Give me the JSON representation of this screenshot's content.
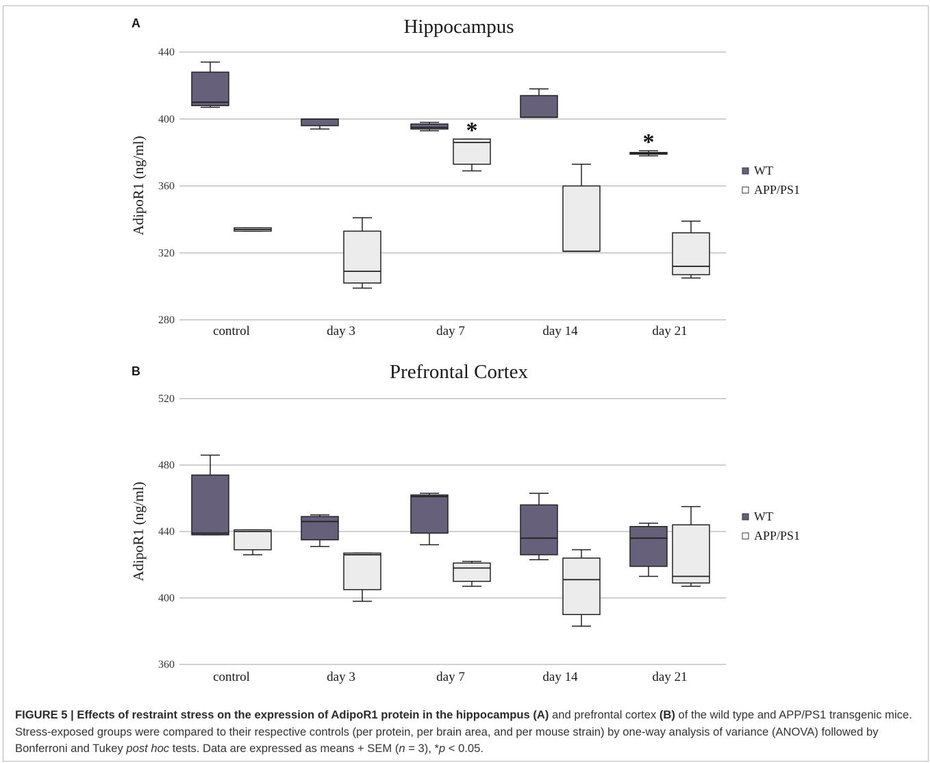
{
  "colors": {
    "wt": "#67607a",
    "app": "#ececec",
    "grid": "#b4b4b4",
    "stroke": "#222222"
  },
  "chart_data": [
    {
      "panel_label": "A",
      "type": "box",
      "title": "Hippocampus",
      "ylabel": "AdipoR1 (ng/ml)",
      "xlabel": "",
      "ylim": [
        280,
        440
      ],
      "yticks": [
        "280",
        "320",
        "360",
        "400",
        "440"
      ],
      "categories": [
        "control",
        "day 3",
        "day 7",
        "day 14",
        "day 21"
      ],
      "grid": true,
      "legend_position": "right",
      "series": [
        {
          "name": "WT",
          "color": "#67607a",
          "boxes": [
            {
              "min": 407,
              "q1": 408,
              "median": 410,
              "q3": 428,
              "max": 434
            },
            {
              "min": 394,
              "q1": 396,
              "median": 400,
              "q3": 400,
              "max": 400
            },
            {
              "min": 393,
              "q1": 394,
              "median": 395,
              "q3": 397,
              "max": 398
            },
            {
              "min": 401,
              "q1": 401,
              "median": 401,
              "q3": 414,
              "max": 418
            },
            {
              "min": 378,
              "q1": 379,
              "median": 379.5,
              "q3": 380,
              "max": 381
            }
          ]
        },
        {
          "name": "APP/PS1",
          "color": "#ececec",
          "boxes": [
            {
              "min": 333,
              "q1": 333,
              "median": 334,
              "q3": 335,
              "max": 335
            },
            {
              "min": 299,
              "q1": 302,
              "median": 309,
              "q3": 333,
              "max": 341
            },
            {
              "min": 369,
              "q1": 373,
              "median": 386,
              "q3": 388,
              "max": 388
            },
            {
              "min": 321,
              "q1": 321,
              "median": 321,
              "q3": 360,
              "max": 373
            },
            {
              "min": 305,
              "q1": 307,
              "median": 312,
              "q3": 332,
              "max": 339
            }
          ]
        }
      ],
      "annotations": [
        {
          "text": "*",
          "category": "day 7",
          "series": "APP/PS1"
        },
        {
          "text": "*",
          "category": "day 21",
          "series": "WT"
        }
      ]
    },
    {
      "panel_label": "B",
      "type": "box",
      "title": "Prefrontal Cortex",
      "ylabel": "AdipoR1 (ng/ml)",
      "xlabel": "",
      "ylim": [
        360,
        520
      ],
      "yticks": [
        "360",
        "400",
        "440",
        "480",
        "520"
      ],
      "categories": [
        "control",
        "day 3",
        "day 7",
        "day 14",
        "day 21"
      ],
      "grid": true,
      "legend_position": "right",
      "series": [
        {
          "name": "WT",
          "color": "#67607a",
          "boxes": [
            {
              "min": 438,
              "q1": 438,
              "median": 439,
              "q3": 474,
              "max": 486
            },
            {
              "min": 431,
              "q1": 435,
              "median": 446,
              "q3": 449,
              "max": 450
            },
            {
              "min": 432,
              "q1": 439,
              "median": 461,
              "q3": 462,
              "max": 463
            },
            {
              "min": 423,
              "q1": 426,
              "median": 436,
              "q3": 456,
              "max": 463
            },
            {
              "min": 413,
              "q1": 419,
              "median": 436,
              "q3": 443,
              "max": 445
            }
          ]
        },
        {
          "name": "APP/PS1",
          "color": "#ececec",
          "boxes": [
            {
              "min": 426,
              "q1": 429,
              "median": 440,
              "q3": 441,
              "max": 441
            },
            {
              "min": 398,
              "q1": 405,
              "median": 426,
              "q3": 427,
              "max": 427
            },
            {
              "min": 407,
              "q1": 410,
              "median": 418,
              "q3": 421,
              "max": 422
            },
            {
              "min": 383,
              "q1": 390,
              "median": 411,
              "q3": 424,
              "max": 429
            },
            {
              "min": 407,
              "q1": 409,
              "median": 413,
              "q3": 444,
              "max": 455
            }
          ]
        }
      ],
      "annotations": []
    }
  ],
  "caption": {
    "lead": "FIGURE 5 | Effects of restraint stress on the expression of AdipoR1 protein in the hippocampus (A)",
    "part1": " and prefrontal cortex ",
    "bold_b": "(B)",
    "part2": " of the wild type and APP/PS1 transgenic mice. Stress-exposed groups were compared to their respective controls (per protein, per brain area, and per mouse strain) by one-way analysis of variance (ANOVA) followed by Bonferroni and Tukey ",
    "italic_posthoc": "post hoc",
    "part3": " tests. Data are expressed as means + SEM (",
    "italic_n": "n",
    "part4": " = 3), *",
    "italic_p": "p",
    "part5": " < 0.05."
  }
}
